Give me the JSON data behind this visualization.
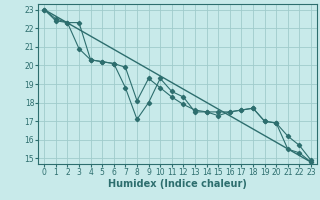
{
  "xlabel": "Humidex (Indice chaleur)",
  "xlim": [
    -0.5,
    23.5
  ],
  "ylim": [
    14.7,
    23.3
  ],
  "xticks": [
    0,
    1,
    2,
    3,
    4,
    5,
    6,
    7,
    8,
    9,
    10,
    11,
    12,
    13,
    14,
    15,
    16,
    17,
    18,
    19,
    20,
    21,
    22,
    23
  ],
  "yticks": [
    15,
    16,
    17,
    18,
    19,
    20,
    21,
    22,
    23
  ],
  "bg_color": "#c8eaea",
  "line_color": "#2d6e6e",
  "grid_color": "#a0cccc",
  "line1": {
    "x": [
      0,
      1,
      2,
      3,
      4,
      5,
      6,
      7,
      8,
      9,
      10,
      11,
      12,
      13,
      14,
      15,
      16,
      17,
      18,
      19,
      20,
      21,
      22,
      23
    ],
    "y": [
      23.0,
      22.5,
      22.3,
      20.9,
      20.3,
      20.2,
      20.1,
      18.8,
      17.1,
      18.0,
      19.3,
      18.6,
      18.3,
      17.5,
      17.5,
      17.3,
      17.5,
      17.6,
      17.7,
      17.0,
      16.9,
      15.5,
      15.3,
      14.8
    ]
  },
  "line2": {
    "x": [
      0,
      1,
      2,
      3,
      4,
      5,
      6,
      7,
      8,
      9,
      10,
      11,
      12,
      13,
      14,
      15,
      16,
      17,
      18,
      19,
      20,
      21,
      22,
      23
    ],
    "y": [
      23.0,
      22.4,
      22.3,
      22.3,
      20.3,
      20.2,
      20.1,
      19.9,
      18.1,
      19.3,
      18.8,
      18.3,
      17.9,
      17.6,
      17.5,
      17.5,
      17.5,
      17.6,
      17.7,
      17.0,
      16.9,
      16.2,
      15.7,
      14.9
    ]
  },
  "line3": {
    "x": [
      0,
      23
    ],
    "y": [
      23.0,
      14.8
    ]
  }
}
